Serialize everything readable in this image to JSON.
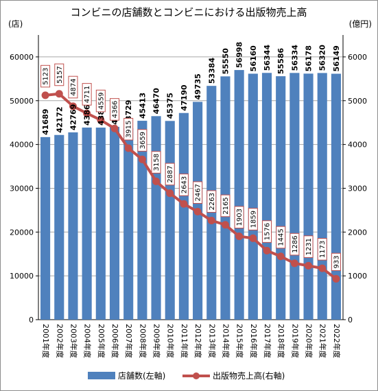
{
  "chart_data": {
    "type": "bar",
    "title": "コンビニの店舗数とコンビニにおける出版物売上高",
    "y_left_unit": "(店)",
    "y_right_unit": "(億円)",
    "ylim_left": [
      0,
      65000
    ],
    "ylim_right": [
      0,
      6500
    ],
    "y_left_ticks": [
      "0",
      "10000",
      "20000",
      "30000",
      "40000",
      "50000",
      "60000"
    ],
    "y_right_ticks": [
      "0",
      "1000",
      "2000",
      "3000",
      "4000",
      "5000",
      "6000"
    ],
    "grid": true,
    "legend_position": "bottom",
    "categories": [
      "2001年度",
      "2002年度",
      "2003年度",
      "2004年度",
      "2005年度",
      "2006年度",
      "2007年度",
      "2008年度",
      "2009年度",
      "2010年度",
      "2011年度",
      "2012年度",
      "2013年度",
      "2014年度",
      "2015年度",
      "2016年度",
      "2017年度",
      "2018年度",
      "2019年度",
      "2020年度",
      "2021年度",
      "2022年度"
    ],
    "series": [
      {
        "name": "店舗数(左軸)",
        "type": "bar",
        "axis": "left",
        "color": "#4f81bd",
        "values": [
          41689,
          42172,
          42769,
          43863,
          43856,
          44036,
          43729,
          45413,
          46470,
          45375,
          47190,
          49735,
          53384,
          55550,
          56998,
          56160,
          56344,
          55586,
          56334,
          56178,
          56320,
          56149
        ]
      },
      {
        "name": "出版物売上高(右軸)",
        "type": "line",
        "axis": "right",
        "color": "#c0504d",
        "values": [
          5123,
          5157,
          4874,
          4711,
          4559,
          4366,
          3915,
          3659,
          3158,
          2887,
          2643,
          2467,
          2263,
          2165,
          1903,
          1859,
          1576,
          1445,
          1286,
          1231,
          1173,
          933
        ]
      }
    ]
  }
}
